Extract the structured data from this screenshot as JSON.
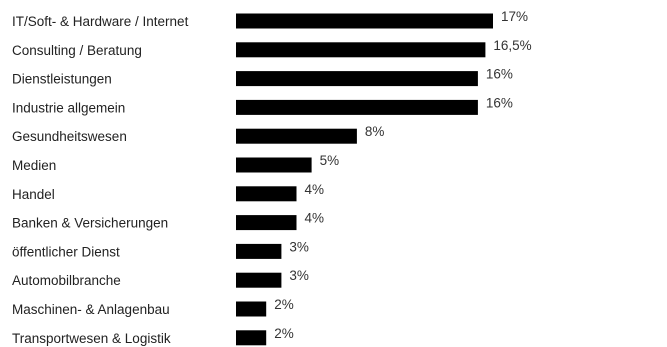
{
  "chart_data": {
    "type": "bar",
    "orientation": "horizontal",
    "categories": [
      "IT/Soft- & Hardware / Internet",
      "Consulting / Beratung",
      "Dienstleistungen",
      "Industrie allgemein",
      "Gesundheitswesen",
      "Medien",
      "Handel",
      "Banken & Versicherungen",
      "öffentlicher Dienst",
      "Automobilbranche",
      "Maschinen- & Anlagenbau",
      "Transportwesen & Logistik"
    ],
    "values": [
      17,
      16.5,
      16,
      16,
      8,
      5,
      4,
      4,
      3,
      3,
      2,
      2
    ],
    "value_labels": [
      "17%",
      "16,5%",
      "16%",
      "16%",
      "8%",
      "5%",
      "4%",
      "4%",
      "3%",
      "3%",
      "2%",
      "2%"
    ],
    "bar_color": "#000000",
    "grid": false,
    "legend": "none"
  }
}
